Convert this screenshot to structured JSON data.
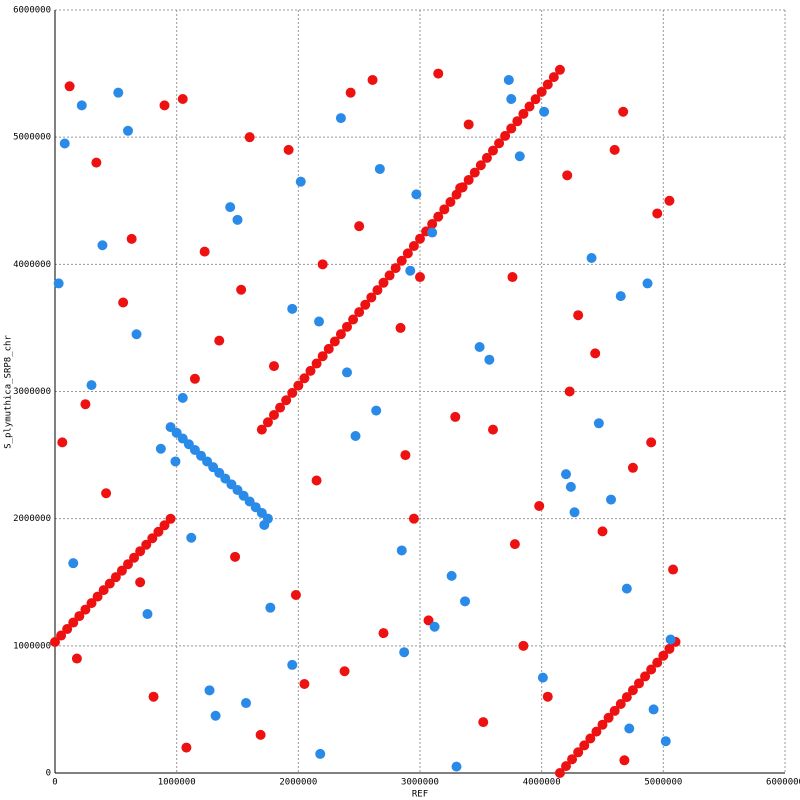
{
  "chart_data": {
    "type": "scatter",
    "x_label": "REF",
    "y_label": "S_plymuthica_SRP8_chr",
    "xlim": [
      0,
      6000000
    ],
    "ylim": [
      0,
      6000000
    ],
    "xticks": [
      0,
      1000000,
      2000000,
      3000000,
      4000000,
      5000000,
      6000000
    ],
    "yticks": [
      0,
      1000000,
      2000000,
      3000000,
      4000000,
      5000000,
      6000000
    ],
    "grid": true,
    "series": [
      {
        "color": "#ee1111",
        "x": [
          0,
          50000,
          100000,
          150000,
          200000,
          250000,
          300000,
          350000,
          400000,
          450000,
          500000,
          550000,
          600000,
          650000,
          700000,
          750000,
          800000,
          850000,
          900000,
          950000
        ],
        "values": [
          1030000,
          1081000,
          1132000,
          1183000,
          1234000,
          1285000,
          1336000,
          1387000,
          1438000,
          1489000,
          1540000,
          1591000,
          1642000,
          1693000,
          1744000,
          1795000,
          1846000,
          1897000,
          1948000,
          1999000
        ]
      },
      {
        "color": "#ee1111",
        "x": [
          1700000,
          1750000,
          1800000,
          1850000,
          1900000,
          1950000,
          2000000,
          2050000,
          2100000,
          2150000,
          2200000,
          2250000,
          2300000,
          2350000,
          2400000,
          2450000,
          2500000,
          2550000,
          2600000,
          2650000,
          2700000,
          2750000,
          2800000,
          2850000,
          2900000,
          2950000,
          3000000,
          3050000,
          3100000,
          3150000,
          3200000,
          3250000,
          3300000,
          3350000,
          3400000,
          3450000,
          3500000,
          3550000,
          3600000,
          3650000,
          3700000,
          3750000,
          3800000,
          3850000,
          3900000,
          3950000,
          4000000,
          4050000,
          4100000,
          4150000
        ],
        "values": [
          2700000,
          2757750,
          2815500,
          2873250,
          2931000,
          2988750,
          3046500,
          3104250,
          3162000,
          3219750,
          3277500,
          3335250,
          3393000,
          3450750,
          3508500,
          3566250,
          3624000,
          3681750,
          3739500,
          3797250,
          3855000,
          3912750,
          3970500,
          4028250,
          4086000,
          4143750,
          4201500,
          4259250,
          4317000,
          4374750,
          4432500,
          4490250,
          4548000,
          4605750,
          4663500,
          4721250,
          4779000,
          4836750,
          4894500,
          4952250,
          5010000,
          5067750,
          5125500,
          5183250,
          5241000,
          5298750,
          5356500,
          5414250,
          5472000,
          5529750
        ]
      },
      {
        "color": "#ee1111",
        "x": [
          4150000,
          4200000,
          4250000,
          4300000,
          4350000,
          4400000,
          4450000,
          4500000,
          4550000,
          4600000,
          4650000,
          4700000,
          4750000,
          4800000,
          4850000,
          4900000,
          4950000,
          5000000,
          5050000,
          5100000
        ],
        "values": [
          0,
          54250,
          108500,
          162750,
          217000,
          271250,
          325500,
          379750,
          434000,
          488250,
          542500,
          596750,
          651000,
          705250,
          759500,
          813750,
          868000,
          922250,
          976500,
          1030750
        ]
      },
      {
        "color": "#ee1111",
        "x": [
          120000,
          340000,
          560000,
          810000,
          1050000,
          1230000,
          1480000,
          1690000,
          1920000,
          2150000,
          2380000,
          2610000,
          2840000,
          3070000,
          3290000,
          3520000,
          3760000,
          3980000,
          4210000,
          4440000,
          4670000,
          4900000,
          5050000,
          250000,
          700000,
          1150000,
          1600000,
          2050000,
          2500000,
          2950000,
          3400000,
          3850000,
          4300000,
          4750000,
          180000,
          630000,
          1080000,
          1530000,
          1980000,
          2430000,
          2880000,
          3330000,
          3780000,
          4230000,
          4680000,
          5080000,
          420000,
          900000,
          1350000,
          2200000,
          2700000,
          3150000,
          3600000,
          4050000,
          4500000,
          4950000,
          60000,
          1800000,
          3000000,
          4600000
        ],
        "values": [
          5400000,
          4800000,
          3700000,
          600000,
          5300000,
          4100000,
          1700000,
          300000,
          4900000,
          2300000,
          800000,
          5450000,
          3500000,
          1200000,
          2800000,
          400000,
          3900000,
          2100000,
          4700000,
          3300000,
          5200000,
          2600000,
          4500000,
          2900000,
          1500000,
          3100000,
          5000000,
          700000,
          4300000,
          2000000,
          5100000,
          1000000,
          3600000,
          2400000,
          900000,
          4200000,
          200000,
          3800000,
          1400000,
          5350000,
          2500000,
          4600000,
          1800000,
          3000000,
          100000,
          1600000,
          2200000,
          5250000,
          3400000,
          4000000,
          1100000,
          5500000,
          2700000,
          600000,
          1900000,
          4400000,
          2600000,
          3200000,
          3900000,
          4900000
        ]
      },
      {
        "color": "#2a8ae8",
        "x": [
          950000,
          1000000,
          1050000,
          1100000,
          1150000,
          1200000,
          1250000,
          1300000,
          1350000,
          1400000,
          1450000,
          1500000,
          1550000,
          1600000,
          1650000,
          1700000,
          1750000
        ],
        "values": [
          2720000,
          2675000,
          2630000,
          2585000,
          2540000,
          2495000,
          2450000,
          2405000,
          2360000,
          2315000,
          2270000,
          2225000,
          2180000,
          2135000,
          2090000,
          2045000,
          2000000
        ]
      },
      {
        "color": "#2a8ae8",
        "x": [
          80000,
          300000,
          520000,
          760000,
          990000,
          1270000,
          1440000,
          1720000,
          1950000,
          2180000,
          2350000,
          2640000,
          2870000,
          3100000,
          3260000,
          3490000,
          3730000,
          4010000,
          4240000,
          4410000,
          4700000,
          4870000,
          5020000,
          220000,
          670000,
          1120000,
          1570000,
          2020000,
          2470000,
          2920000,
          3370000,
          3820000,
          4270000,
          4720000,
          150000,
          600000,
          1050000,
          1500000,
          1950000,
          2400000,
          2850000,
          3300000,
          3750000,
          4200000,
          4650000,
          5060000,
          390000,
          870000,
          1320000,
          2170000,
          2670000,
          3120000,
          3570000,
          4020000,
          4470000,
          4920000,
          30000,
          1770000,
          2970000,
          4570000
        ],
        "values": [
          4950000,
          3050000,
          5350000,
          1250000,
          2450000,
          650000,
          4450000,
          1950000,
          3650000,
          150000,
          5150000,
          2850000,
          950000,
          4250000,
          1550000,
          3350000,
          5450000,
          750000,
          2250000,
          4050000,
          1450000,
          3850000,
          250000,
          5250000,
          3450000,
          1850000,
          550000,
          4650000,
          2650000,
          3950000,
          1350000,
          4850000,
          2050000,
          350000,
          1650000,
          5050000,
          2950000,
          4350000,
          850000,
          3150000,
          1750000,
          50000,
          5300000,
          2350000,
          3750000,
          1050000,
          4150000,
          2550000,
          450000,
          3550000,
          4750000,
          1150000,
          3250000,
          5200000,
          2750000,
          500000,
          3850000,
          1300000,
          4550000,
          2150000
        ]
      }
    ]
  }
}
